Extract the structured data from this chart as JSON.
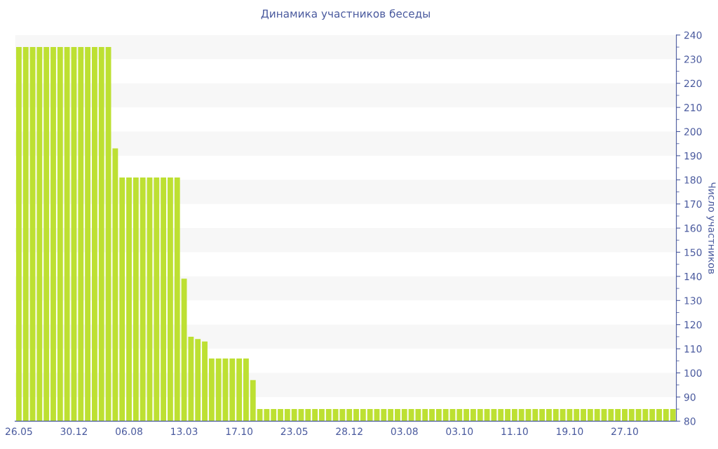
{
  "chart_data": {
    "type": "bar",
    "title": "Динамика участников беседы",
    "ylabel": "Число участников",
    "categories": [
      "26.05",
      null,
      null,
      null,
      null,
      null,
      null,
      null,
      "30.12",
      null,
      null,
      null,
      null,
      null,
      null,
      null,
      "06.08",
      null,
      null,
      null,
      null,
      null,
      null,
      null,
      "13.03",
      null,
      null,
      null,
      null,
      null,
      null,
      null,
      "17.10",
      null,
      null,
      null,
      null,
      null,
      null,
      null,
      "23.05",
      null,
      null,
      null,
      null,
      null,
      null,
      null,
      "28.12",
      null,
      null,
      null,
      null,
      null,
      null,
      null,
      "03.08",
      null,
      null,
      null,
      null,
      null,
      null,
      null,
      "03.10",
      null,
      null,
      null,
      null,
      null,
      null,
      null,
      "11.10",
      null,
      null,
      null,
      null,
      null,
      null,
      null,
      "19.10",
      null,
      null,
      null,
      null,
      null,
      null,
      null,
      "27.10",
      null,
      null,
      null,
      null,
      null,
      null,
      null
    ],
    "values": [
      235,
      235,
      235,
      235,
      235,
      235,
      235,
      235,
      235,
      235,
      235,
      235,
      235,
      235,
      193,
      181,
      181,
      181,
      181,
      181,
      181,
      181,
      181,
      181,
      139,
      115,
      114,
      113,
      106,
      106,
      106,
      106,
      106,
      106,
      97,
      85,
      85,
      85,
      85,
      85,
      85,
      85,
      85,
      85,
      85,
      85,
      85,
      85,
      85,
      85,
      85,
      85,
      85,
      85,
      85,
      85,
      85,
      85,
      85,
      85,
      85,
      85,
      85,
      85,
      85,
      85,
      85,
      85,
      85,
      85,
      85,
      85,
      85,
      85,
      85,
      85,
      85,
      85,
      85,
      85,
      85,
      85,
      85,
      85,
      85,
      85,
      85,
      85,
      85,
      85,
      85,
      85,
      85,
      85,
      85,
      85
    ],
    "color": "#bde032",
    "ylim": [
      80,
      240
    ],
    "yticks": [
      80,
      90,
      100,
      110,
      120,
      130,
      140,
      150,
      160,
      170,
      180,
      190,
      200,
      210,
      220,
      230,
      240
    ],
    "legend": false
  }
}
